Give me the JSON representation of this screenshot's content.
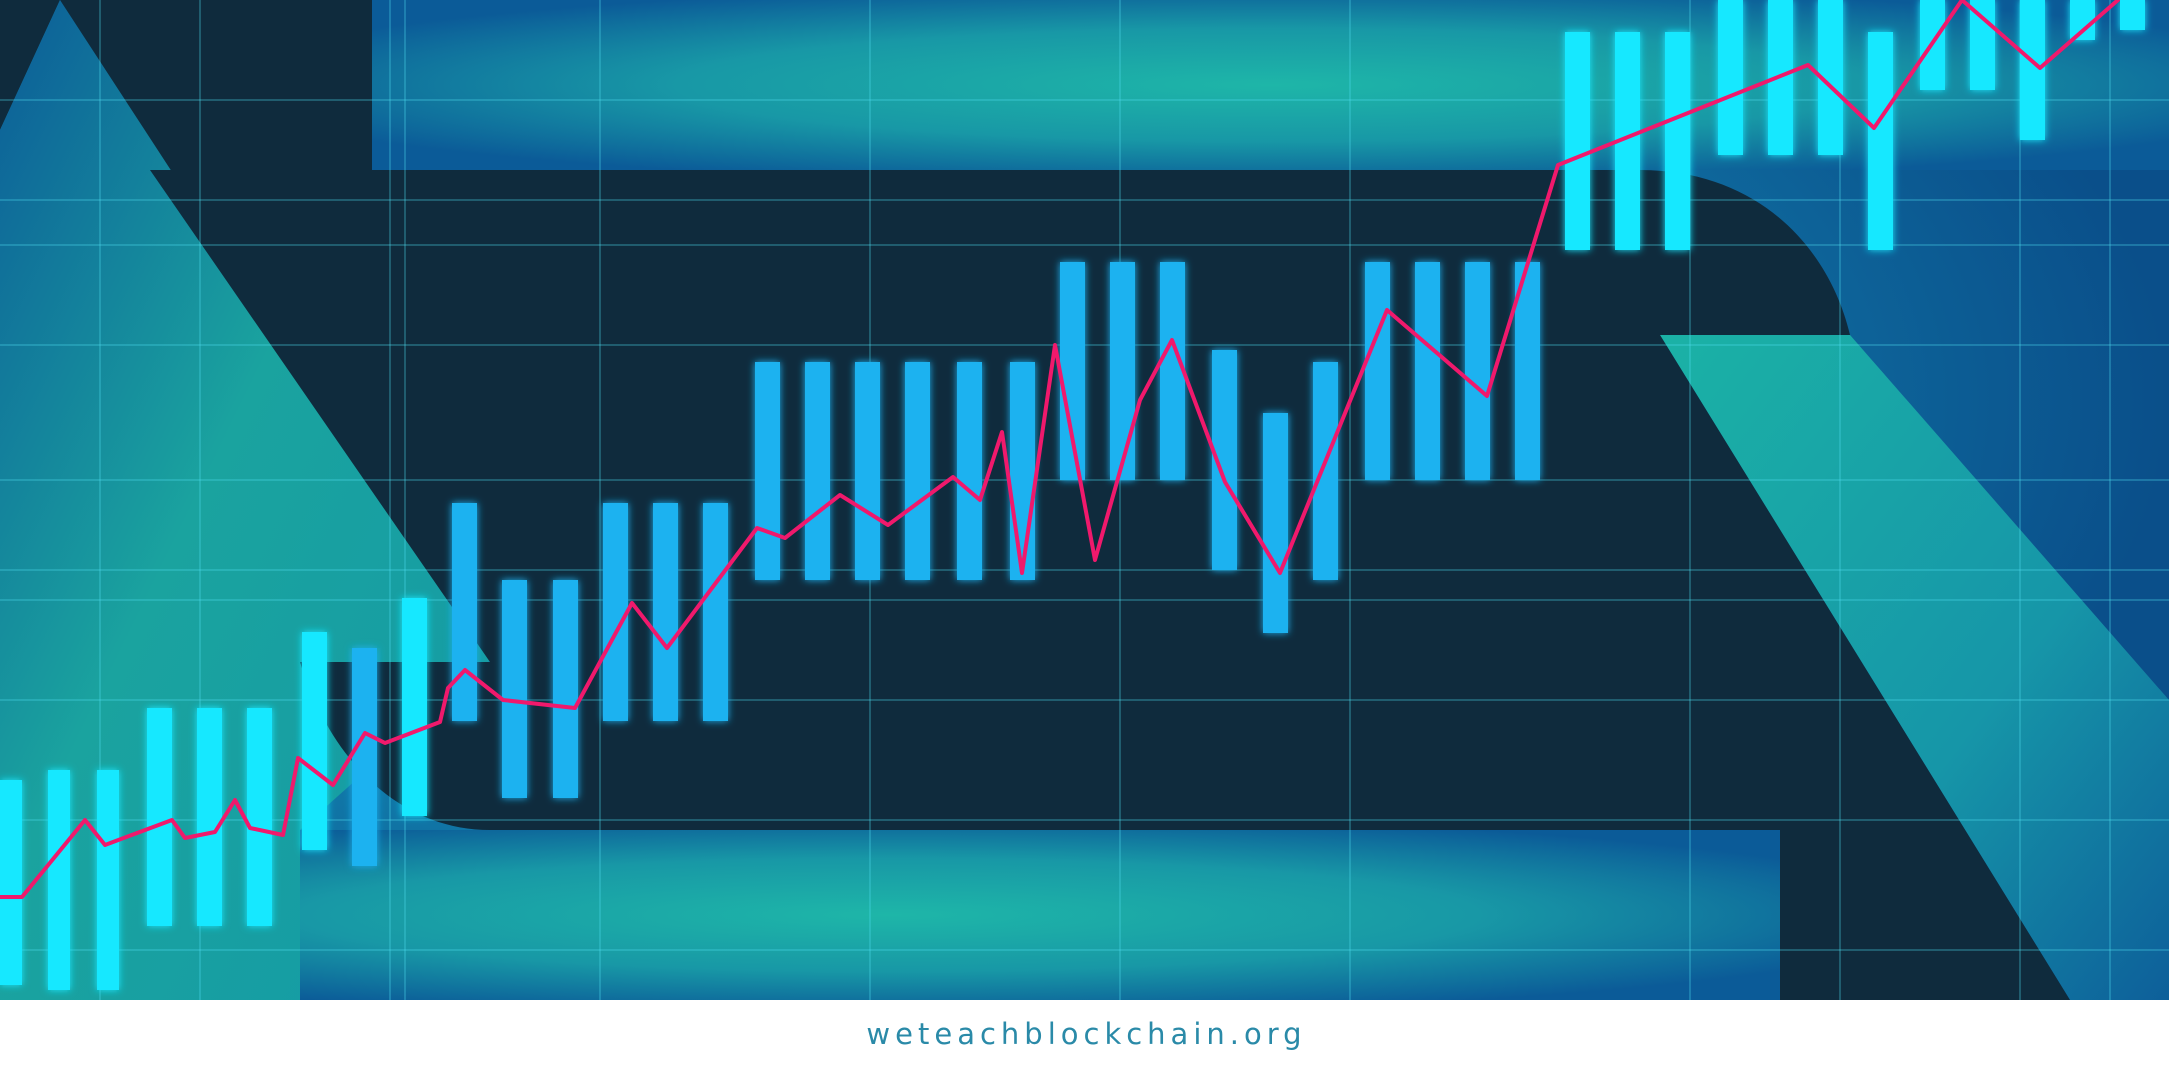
{
  "footer": {
    "url": "weteachblockchain.org"
  },
  "palette": {
    "dark_navy": "#0f2b3d",
    "teal": "#1fa3a0",
    "deep_blue": "#0b5f9a",
    "bar_cyan": "#12e8ff",
    "bar_blue": "#1ab2f0",
    "grid_line": "#4fe0f0",
    "trend_line": "#f0196c",
    "footer_text": "#2a8aa8"
  }
}
